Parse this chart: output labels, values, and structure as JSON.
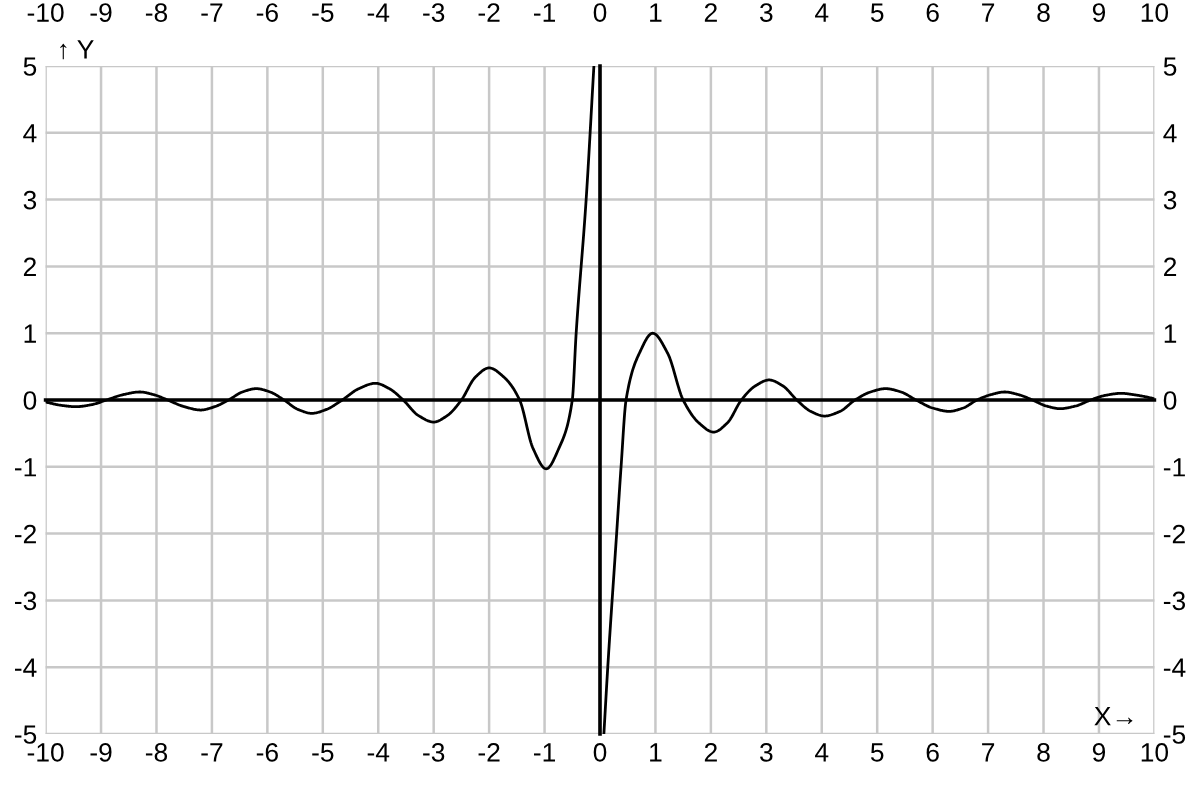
{
  "chart_data": {
    "type": "line",
    "xlabel": "X→",
    "ylabel": "↑ Y",
    "x": [
      -10,
      -9.72,
      -9.45,
      -9.17,
      -8.9,
      -8.6,
      -8.3,
      -8.05,
      -7.8,
      -7.5,
      -7.2,
      -6.95,
      -6.7,
      -6.45,
      -6.2,
      -5.95,
      -5.7,
      -5.45,
      -5.2,
      -4.93,
      -4.65,
      -4.35,
      -4.05,
      -3.8,
      -3.55,
      -3.28,
      -3.0,
      -2.75,
      -2.5,
      -2.25,
      -2.0,
      -1.73,
      -1.45,
      -1.21,
      -0.97,
      -0.74,
      -0.5,
      -0.43,
      -0.25,
      -0.11,
      0,
      0.07,
      0.14,
      0.3,
      0.38,
      0.47,
      0.71,
      0.95,
      1.22,
      1.5,
      1.78,
      2.05,
      2.3,
      2.55,
      2.8,
      3.05,
      3.3,
      3.55,
      3.8,
      4.05,
      4.33,
      4.6,
      4.88,
      5.15,
      5.43,
      5.7,
      6.0,
      6.3,
      6.55,
      6.8,
      7.05,
      7.3,
      7.55,
      7.8,
      8.05,
      8.3,
      8.58,
      8.85,
      9.12,
      9.4,
      9.7,
      10
    ],
    "series": [
      {
        "color": "#000000",
        "values": [
          -0.03,
          -0.08,
          -0.1,
          -0.07,
          0,
          0.08,
          0.12,
          0.08,
          0,
          -0.1,
          -0.15,
          -0.1,
          0,
          0.12,
          0.17,
          0.12,
          0,
          -0.14,
          -0.2,
          -0.14,
          0,
          0.17,
          0.25,
          0.17,
          0,
          -0.23,
          -0.33,
          -0.23,
          0,
          0.34,
          0.48,
          0.34,
          0,
          -0.72,
          -1.03,
          -0.72,
          0,
          1,
          3,
          5,
          null,
          -5,
          -4,
          -2,
          -1,
          0,
          0.7,
          1.0,
          0.7,
          0,
          -0.34,
          -0.48,
          -0.34,
          0,
          0.21,
          0.3,
          0.21,
          0,
          -0.17,
          -0.24,
          -0.17,
          0,
          0.12,
          0.17,
          0.12,
          0,
          -0.12,
          -0.17,
          -0.12,
          0,
          0.08,
          0.12,
          0.08,
          0,
          -0.09,
          -0.13,
          -0.09,
          0,
          0.07,
          0.1,
          0.07,
          0.02
        ]
      }
    ],
    "xlim": [
      -10,
      10
    ],
    "xticks": [
      -10,
      -9,
      -8,
      -7,
      -6,
      -5,
      -4,
      -3,
      -2,
      -1,
      0,
      1,
      2,
      3,
      4,
      5,
      6,
      7,
      8,
      9,
      10
    ],
    "x2lim": [
      -10,
      10
    ],
    "x2ticks": [
      -10,
      -9,
      -8,
      -7,
      -6,
      -5,
      -4,
      -3,
      -2,
      -1,
      0,
      1,
      2,
      3,
      4,
      5,
      6,
      7,
      8,
      9,
      10
    ],
    "ylim": [
      -5,
      5
    ],
    "yticks": [
      -5,
      -4,
      -3,
      -2,
      -1,
      0,
      1,
      2,
      3,
      4,
      5
    ],
    "y2lim": [
      -5,
      5
    ],
    "y2ticks": [
      -5,
      -4,
      -3,
      -2,
      -1,
      0,
      1,
      2,
      3,
      4,
      5
    ],
    "grid": true,
    "legend": false
  }
}
